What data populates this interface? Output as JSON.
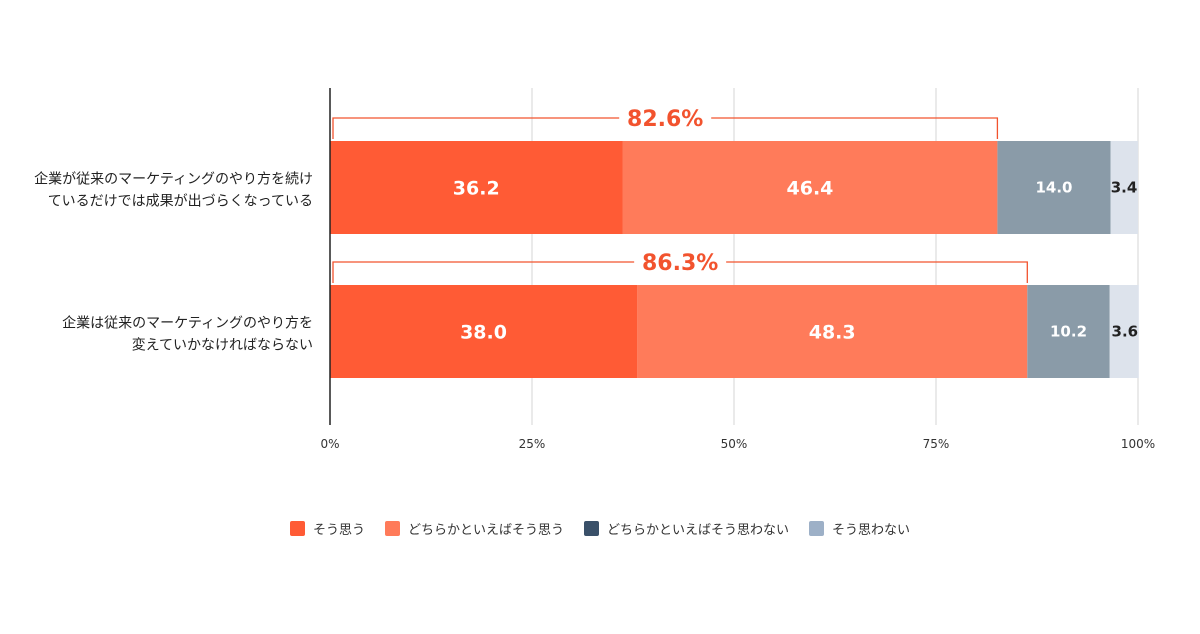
{
  "chart_data": {
    "type": "bar",
    "orientation": "horizontal",
    "stacked": true,
    "categories": [
      [
        "企業が従来のマーケティングのやり方を続け",
        "ているだけでは成果が出づらくなっている"
      ],
      [
        "企業は従来のマーケティングのやり方を",
        "変えていかなければならない"
      ]
    ],
    "series": [
      {
        "name": "そう思う",
        "color": "#FF5B35",
        "label_color": "#ffffff",
        "values": [
          36.2,
          38.0
        ],
        "labels": [
          "36.2",
          "38.0"
        ]
      },
      {
        "name": "どちらかといえばそう思う",
        "color": "#FF7B5A",
        "label_color": "#ffffff",
        "values": [
          46.4,
          48.3
        ],
        "labels": [
          "46.4",
          "48.3"
        ]
      },
      {
        "name": "どちらかといえばそう思わない",
        "color": "#8A9BA8",
        "legend_color": "#3A5069",
        "label_color": "#ffffff",
        "values": [
          14.0,
          10.2
        ],
        "labels": [
          "14.0",
          "10.2"
        ]
      },
      {
        "name": "そう思わない",
        "color": "#DDE3EC",
        "legend_color": "#9DB0C7",
        "label_color": "#222222",
        "values": [
          3.4,
          3.6
        ],
        "labels": [
          "3.4",
          "3.6"
        ]
      }
    ],
    "totals": [
      {
        "value": 82.6,
        "label": "82.6%"
      },
      {
        "value": 86.3,
        "label": "86.3%"
      }
    ],
    "total_color": "#F2532E",
    "xlim": [
      0,
      100
    ],
    "xticks": [
      "0%",
      "25%",
      "50%",
      "75%",
      "100%"
    ],
    "grid": true,
    "legend_position": "bottom"
  }
}
